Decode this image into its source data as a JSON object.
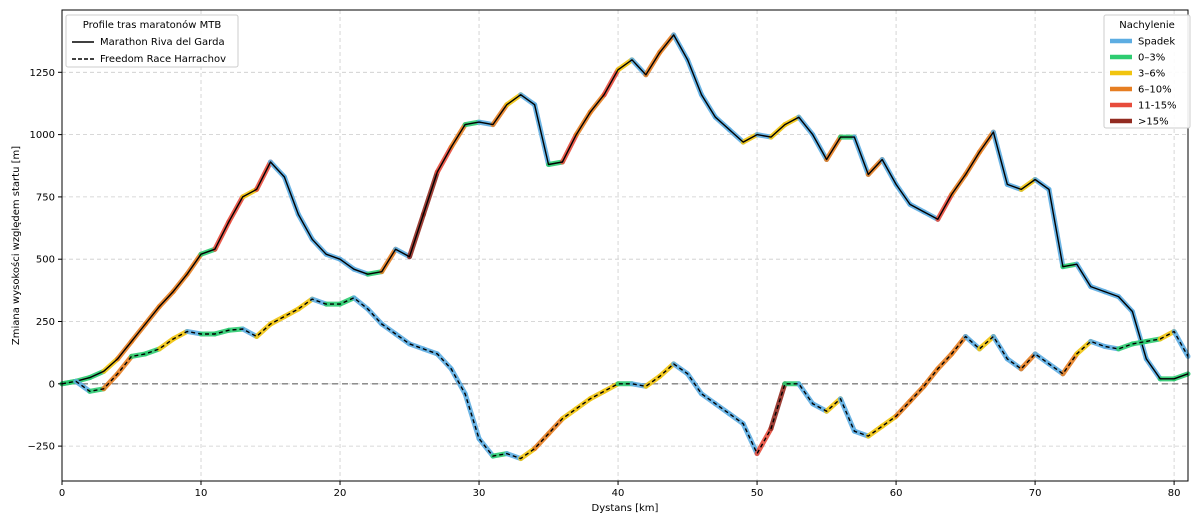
{
  "chart_data": {
    "type": "line",
    "xlabel": "Dystans [km]",
    "ylabel": "Zmiana wysokości względem startu [m]",
    "xlim": [
      0,
      81
    ],
    "ylim": [
      -390,
      1500
    ],
    "xticks": [
      0,
      10,
      20,
      30,
      40,
      50,
      60,
      70,
      80
    ],
    "yticks": [
      -250,
      0,
      250,
      500,
      750,
      1000,
      1250
    ],
    "grid": true,
    "zero_line": true,
    "routes_legend": {
      "title": "Profile tras maratonów MTB",
      "placement": "top-left",
      "entries": [
        {
          "label": "Marathon Riva del Garda",
          "style": "solid"
        },
        {
          "label": "Freedom Race Harrachov",
          "style": "dashed"
        }
      ]
    },
    "slope_legend": {
      "title": "Nachylenie",
      "placement": "top-right",
      "entries": [
        {
          "label": "Spadek",
          "color": "#5dade2"
        },
        {
          "label": "0–3%",
          "color": "#2ecc71"
        },
        {
          "label": "3–6%",
          "color": "#f1c40f"
        },
        {
          "label": "6–10%",
          "color": "#e67e22"
        },
        {
          "label": "11-15%",
          "color": "#e74c3c"
        },
        {
          "label": ">15%",
          "color": "#922b21"
        }
      ]
    },
    "series": [
      {
        "name": "Marathon Riva del Garda",
        "style": "solid",
        "x": [
          0,
          1,
          2,
          3,
          4,
          5,
          6,
          7,
          8,
          9,
          10,
          11,
          12,
          13,
          14,
          15,
          16,
          17,
          18,
          19,
          20,
          21,
          22,
          23,
          24,
          25,
          26,
          27,
          28,
          29,
          30,
          31,
          32,
          33,
          34,
          35,
          36,
          37,
          38,
          39,
          40,
          41,
          42,
          43,
          44,
          45,
          46,
          47,
          48,
          49,
          50,
          51,
          52,
          53,
          54,
          55,
          56,
          57,
          58,
          59,
          60,
          61,
          62,
          63,
          64,
          65,
          66,
          67,
          68,
          69,
          70,
          71,
          72,
          73,
          74,
          75,
          76,
          77,
          78,
          79,
          80,
          81
        ],
        "y": [
          0,
          10,
          25,
          50,
          100,
          170,
          240,
          310,
          370,
          440,
          520,
          540,
          650,
          750,
          780,
          890,
          830,
          680,
          580,
          520,
          500,
          460,
          440,
          450,
          540,
          510,
          680,
          850,
          950,
          1040,
          1050,
          1040,
          1120,
          1160,
          1120,
          880,
          890,
          1000,
          1090,
          1160,
          1260,
          1300,
          1240,
          1330,
          1400,
          1300,
          1160,
          1070,
          1020,
          970,
          1000,
          990,
          1040,
          1070,
          1000,
          900,
          990,
          990,
          840,
          900,
          800,
          720,
          690,
          660,
          760,
          840,
          930,
          1010,
          800,
          780,
          820,
          780,
          470,
          480,
          390,
          370,
          350,
          290,
          100,
          20,
          20,
          40
        ]
      },
      {
        "name": "Freedom Race Harrachov",
        "style": "dashed",
        "x": [
          0,
          1,
          2,
          3,
          4,
          5,
          6,
          7,
          8,
          9,
          10,
          11,
          12,
          13,
          14,
          15,
          16,
          17,
          18,
          19,
          20,
          21,
          22,
          23,
          24,
          25,
          26,
          27,
          28,
          29,
          30,
          31,
          32,
          33,
          34,
          35,
          36,
          37,
          38,
          39,
          40,
          41,
          42,
          43,
          44,
          45,
          46,
          47,
          48,
          49,
          50,
          51,
          52,
          53,
          54,
          55,
          56,
          57,
          58,
          59,
          60,
          61,
          62,
          63,
          64,
          65,
          66,
          67,
          68,
          69,
          70,
          71,
          72,
          73,
          74,
          75,
          76,
          77,
          78,
          79,
          80,
          81
        ],
        "y": [
          0,
          10,
          -30,
          -20,
          40,
          110,
          120,
          140,
          180,
          210,
          200,
          200,
          215,
          220,
          190,
          240,
          270,
          300,
          340,
          320,
          320,
          345,
          300,
          240,
          200,
          160,
          140,
          120,
          60,
          -40,
          -220,
          -290,
          -280,
          -300,
          -260,
          -200,
          -140,
          -100,
          -60,
          -30,
          0,
          0,
          -10,
          30,
          80,
          40,
          -40,
          -80,
          -120,
          -160,
          -280,
          -180,
          0,
          0,
          -80,
          -110,
          -60,
          -190,
          -210,
          -170,
          -130,
          -70,
          -10,
          60,
          120,
          190,
          140,
          190,
          100,
          60,
          120,
          80,
          40,
          120,
          170,
          150,
          140,
          160,
          170,
          180,
          210,
          110
        ]
      }
    ]
  }
}
